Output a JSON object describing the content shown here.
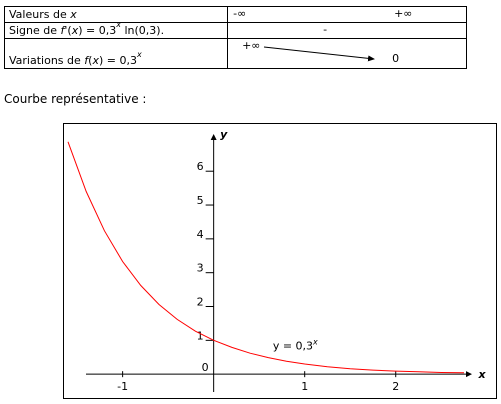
{
  "table": {
    "row1": {
      "label_prefix": "Valeurs de ",
      "label_var": "x",
      "minus_inf": "-∞",
      "plus_inf": "+∞"
    },
    "row2": {
      "label_a": "Signe de ",
      "label_f": "f",
      "label_b": "'(",
      "label_x": "x",
      "label_c": ") = 0,3",
      "label_sup": "x",
      "label_d": " ln(0,3).",
      "sign": "-"
    },
    "row3": {
      "label_a": "Variations de ",
      "label_f": "f",
      "label_b": "(",
      "label_x": "x",
      "label_c": ") = 0,3",
      "label_sup": "x",
      "start": "+∞",
      "end": "0"
    }
  },
  "caption": "Courbe représentative :",
  "chart_data": {
    "type": "line",
    "function": "y = 0.3^x",
    "xlabel": "x",
    "ylabel": "y",
    "xlim": [
      -1.6,
      2.75
    ],
    "ylim": [
      -0.35,
      7.1
    ],
    "x_ticks": [
      -1,
      1,
      2
    ],
    "x_tick_labels": [
      "-1",
      "1",
      "2"
    ],
    "y_ticks": [
      1,
      2,
      3,
      4,
      5,
      6
    ],
    "y_tick_labels": [
      "1",
      "2",
      "3",
      "4",
      "5",
      "6"
    ],
    "origin_label": "0",
    "annotation": {
      "text_prefix": "y = 0,3",
      "text_sup": "x",
      "x": 0.65,
      "y": 0.85
    },
    "series": [
      {
        "color": "#ff0000",
        "x": [
          -1.6,
          -1.4,
          -1.2,
          -1.0,
          -0.8,
          -0.6,
          -0.4,
          -0.2,
          0,
          0.2,
          0.4,
          0.6,
          0.8,
          1.0,
          1.25,
          1.5,
          1.75,
          2.0,
          2.25,
          2.5,
          2.75
        ],
        "y": [
          6.87,
          5.4,
          4.24,
          3.33,
          2.62,
          2.06,
          1.62,
          1.27,
          1.0,
          0.79,
          0.62,
          0.49,
          0.38,
          0.3,
          0.22,
          0.16,
          0.12,
          0.09,
          0.07,
          0.05,
          0.04
        ]
      }
    ],
    "grid": false
  }
}
